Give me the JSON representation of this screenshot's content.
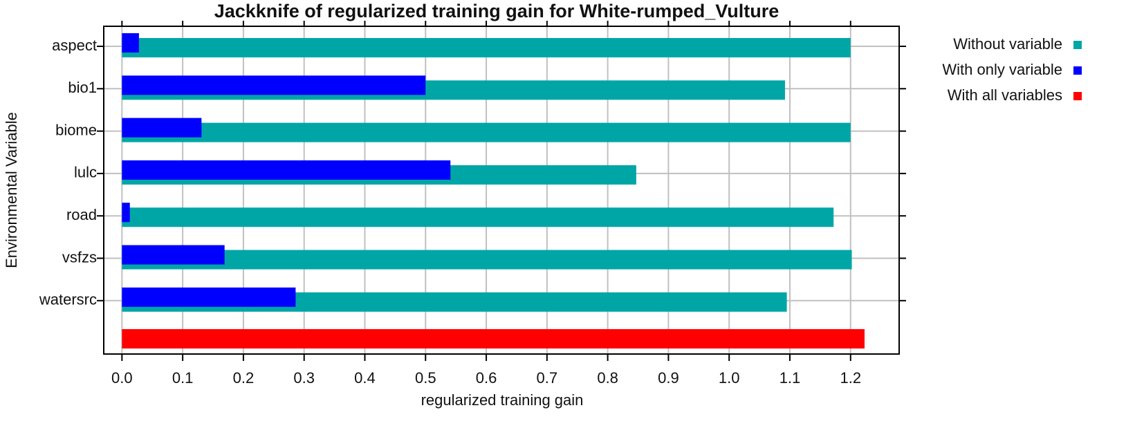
{
  "chart_data": {
    "type": "bar",
    "orientation": "horizontal",
    "title": "Jackknife of regularized training gain for White-rumped_Vulture",
    "x_label": "regularized training gain",
    "y_label": "Environmental Variable",
    "categories": [
      "aspect",
      "bio1",
      "biome",
      "lulc",
      "road",
      "vsfzs",
      "watersrc",
      null
    ],
    "series": [
      {
        "name": "Without variable",
        "color": "#00a6a6",
        "values": [
          1.2,
          1.092,
          1.2,
          0.847,
          1.172,
          1.202,
          1.095,
          null
        ]
      },
      {
        "name": "With only variable",
        "color": "#0000ff",
        "values": [
          0.028,
          0.5,
          0.131,
          0.541,
          0.013,
          0.169,
          0.286,
          null
        ]
      },
      {
        "name": "With all variables",
        "color": "#ff0000",
        "values": [
          null,
          null,
          null,
          null,
          null,
          null,
          null,
          1.223
        ]
      }
    ],
    "xlim": [
      -0.03,
      1.28
    ],
    "xticks": [
      {
        "value": 0,
        "label": "0.0"
      },
      0.1,
      0.2,
      0.3,
      0.4,
      0.5,
      0.6,
      0.7,
      0.8,
      0.9,
      {
        "value": 1,
        "label": "1.0"
      },
      1.1,
      1.2
    ],
    "grid": true,
    "legend": "right"
  }
}
